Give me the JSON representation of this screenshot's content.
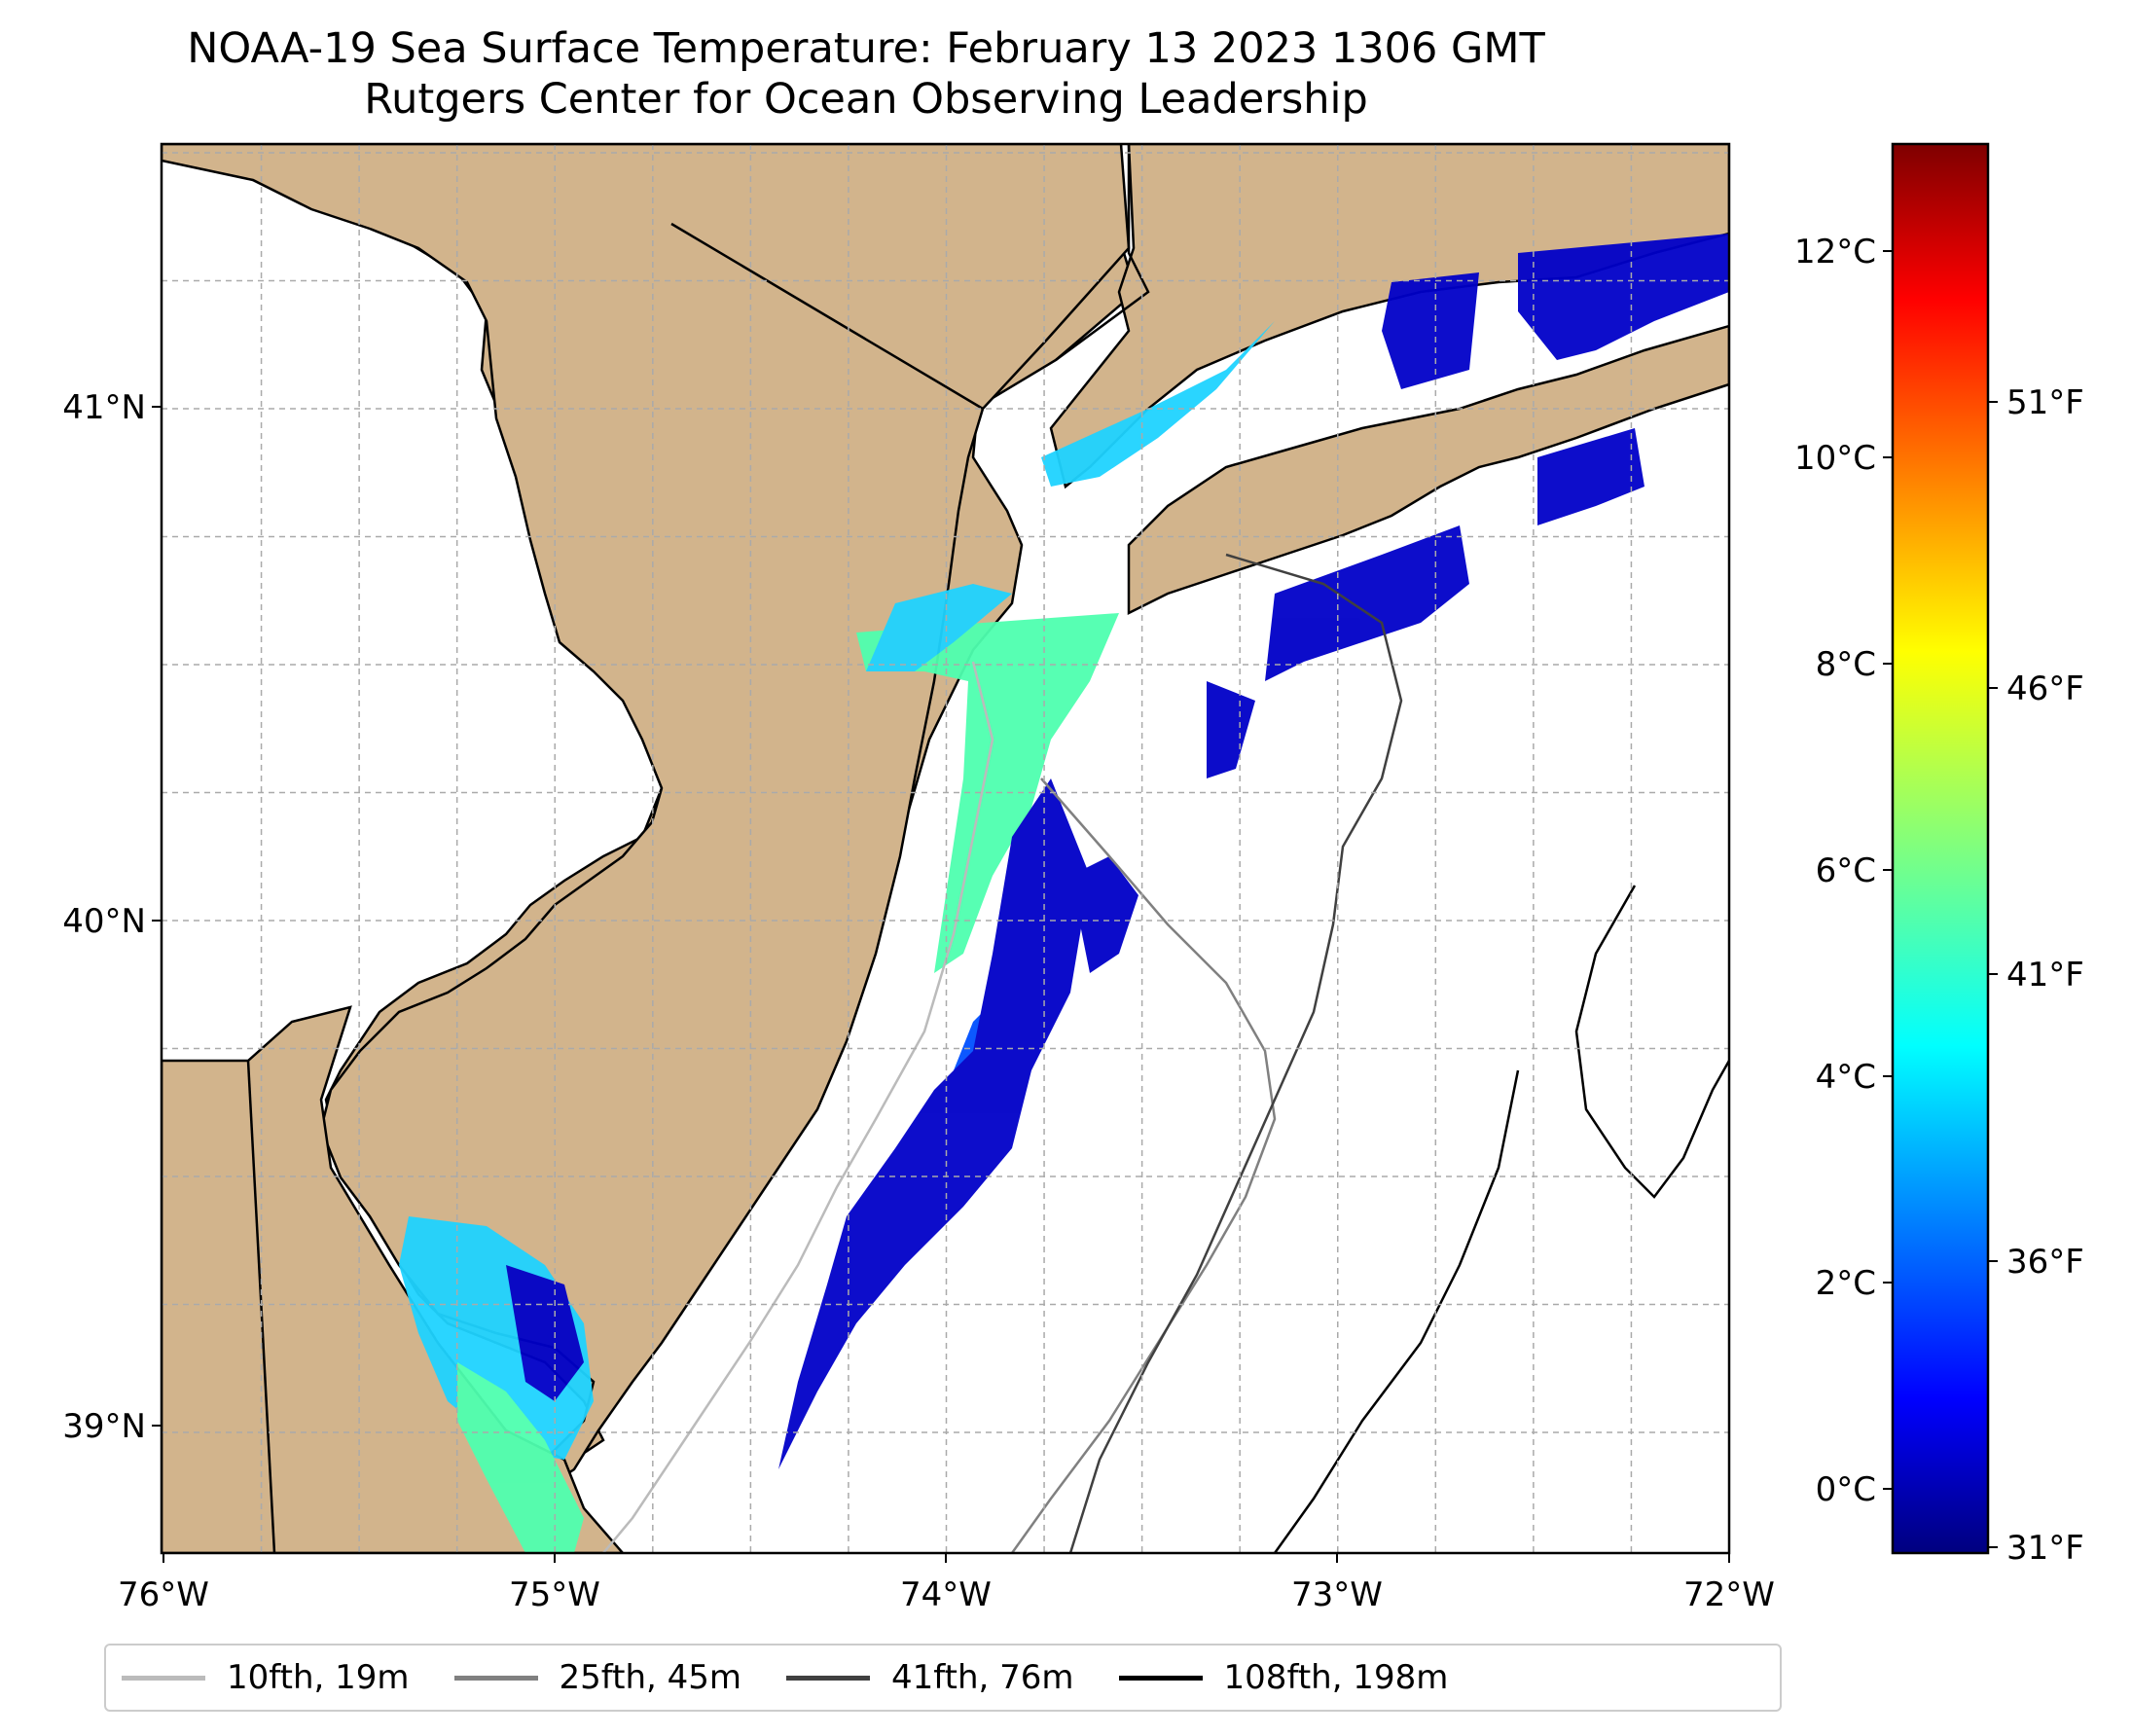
{
  "title": {
    "line1": "NOAA-19 Sea Surface Temperature: February 13 2023 1306 GMT",
    "line2": "Rutgers Center for Ocean Observing Leadership"
  },
  "colors": {
    "land": "#D2B48C",
    "ocean_nodata": "#FFFFFF",
    "gridline": "#AAAAAA",
    "coastline": "#000000"
  },
  "map": {
    "lon_range": [
      -76.0,
      -72.0
    ],
    "lat_range": [
      38.73,
      41.53
    ],
    "lon_ticks": [
      "76°W",
      "75°W",
      "74°W",
      "73°W",
      "72°W"
    ],
    "lat_ticks": [
      "41°N",
      "40°N",
      "39°N"
    ],
    "gridlines": true
  },
  "colorbar": {
    "colormap": "jet",
    "celsius_ticks": [
      "12°C",
      "10°C",
      "8°C",
      "6°C",
      "4°C",
      "2°C",
      "0°C"
    ],
    "fahrenheit_ticks": [
      "51°F",
      "46°F",
      "41°F",
      "36°F",
      "31°F"
    ]
  },
  "legend": {
    "items": [
      {
        "label": "10fth, 19m",
        "color": "#BBBBBB"
      },
      {
        "label": "25fth, 45m",
        "color": "#808080"
      },
      {
        "label": "41fth, 76m",
        "color": "#404040"
      },
      {
        "label": "108fth, 198m",
        "color": "#000000"
      }
    ]
  }
}
